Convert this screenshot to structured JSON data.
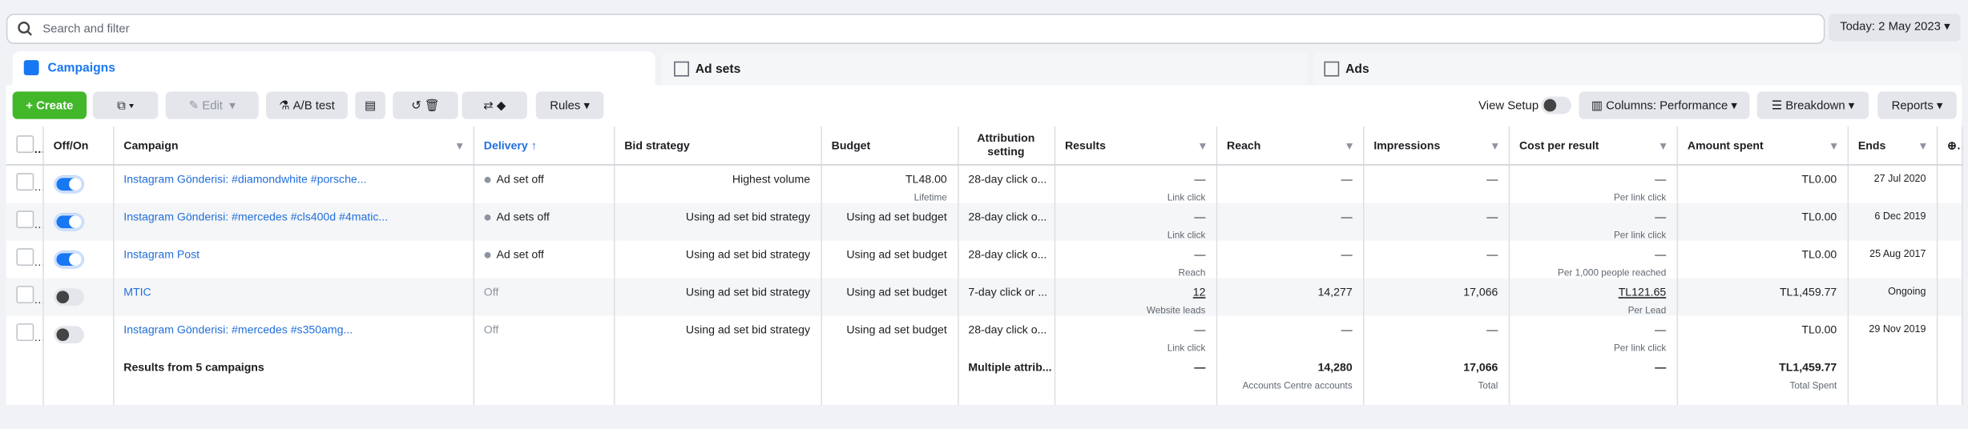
{
  "search": {
    "placeholder": "Search and filter",
    "date": "Today: 2 May 2023"
  },
  "tabs": [
    "Campaigns",
    "Ad sets",
    "Ads"
  ],
  "toolbar": {
    "create": "Create",
    "edit": "Edit",
    "ab_test": "A/B test",
    "rules": "Rules",
    "view_setup": "View Setup",
    "columns": "Columns: Performance",
    "breakdown": "Breakdown",
    "reports": "Reports"
  },
  "table": {
    "columns": [
      "Off/On",
      "Campaign",
      "Delivery",
      "Bid strategy",
      "Budget",
      "Attribution setting",
      "Results",
      "Reach",
      "Impressions",
      "Cost per result",
      "Amount spent",
      "Ends"
    ],
    "rows": [
      {
        "on": true,
        "campaign": "Instagram Gönderisi: #diamondwhite #porsche...",
        "delivery": "Ad set off",
        "bid": "Highest volume",
        "budget": "TL48.00",
        "budget_note": "Lifetime",
        "attribution": "28-day click o...",
        "results": "—",
        "results_note": "Link click",
        "reach": "—",
        "impressions": "—",
        "cost": "—",
        "cost_note": "Per link click",
        "spent": "TL0.00",
        "ends": "27 Jul 2020"
      },
      {
        "on": true,
        "campaign": "Instagram Gönderisi: #mercedes #cls400d #4matic...",
        "delivery": "Ad sets off",
        "bid": "Using ad set bid strategy",
        "budget": "Using ad set budget",
        "attribution": "28-day click o...",
        "results": "—",
        "results_note": "Link click",
        "reach": "—",
        "impressions": "—",
        "cost": "—",
        "cost_note": "Per link click",
        "spent": "TL0.00",
        "ends": "6 Dec 2019"
      },
      {
        "on": true,
        "campaign": "Instagram Post",
        "delivery": "Ad set off",
        "bid": "Using ad set bid strategy",
        "budget": "Using ad set budget",
        "attribution": "28-day click o...",
        "results": "—",
        "results_note": "Reach",
        "reach": "—",
        "impressions": "—",
        "cost": "—",
        "cost_note": "Per 1,000 people reached",
        "spent": "TL0.00",
        "ends": "25 Aug 2017"
      },
      {
        "on": false,
        "campaign": "MTIC",
        "delivery": "Off",
        "bid": "Using ad set bid strategy",
        "budget": "Using ad set budget",
        "attribution": "7-day click or ...",
        "results": "12",
        "results_note": "Website leads",
        "reach": "14,277",
        "impressions": "17,066",
        "cost": "TL121.65",
        "cost_note": "Per Lead",
        "spent": "TL1,459.77",
        "ends": "Ongoing"
      },
      {
        "on": false,
        "campaign": "Instagram Gönderisi: #mercedes #s350amg...",
        "delivery": "Off",
        "bid": "Using ad set bid strategy",
        "budget": "Using ad set budget",
        "attribution": "28-day click o...",
        "results": "—",
        "results_note": "Link click",
        "reach": "—",
        "impressions": "—",
        "cost": "—",
        "cost_note": "Per link click",
        "spent": "TL0.00",
        "ends": "29 Nov 2019"
      }
    ],
    "footer": {
      "campaign": "Results from 5 campaigns",
      "attribution": "Multiple attrib...",
      "results": "—",
      "reach": "14,280",
      "reach_note": "Accounts Centre accounts",
      "impressions": "17,066",
      "impressions_note": "Total",
      "cost": "—",
      "spent": "TL1,459.77",
      "spent_note": "Total Spent"
    }
  }
}
